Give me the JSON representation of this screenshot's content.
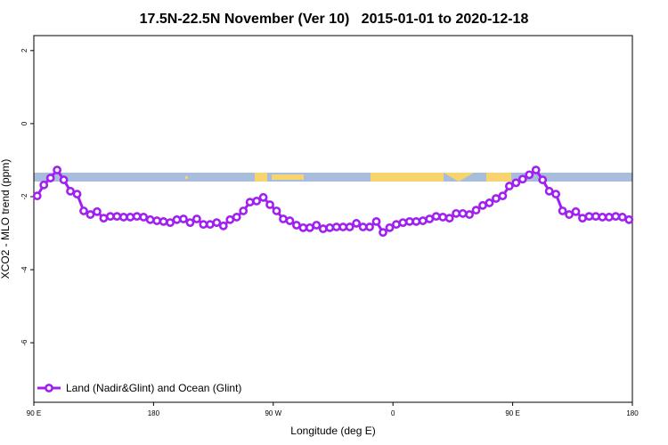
{
  "chart_data": {
    "type": "line",
    "title": "17.5N-22.5N November (Ver 10)   2015-01-01 to 2020-12-18",
    "x_label": "Longitude (deg E)",
    "y_label": "XCO2 - MLO trend (ppm)",
    "x": [
      92.5,
      97.5,
      102.5,
      107.5,
      112.5,
      117.5,
      122.5,
      127.5,
      132.5,
      137.5,
      142.5,
      147.5,
      152.5,
      157.5,
      162.5,
      167.5,
      172.5,
      177.5,
      182.5,
      187.5,
      192.5,
      197.5,
      202.5,
      207.5,
      212.5,
      217.5,
      222.5,
      227.5,
      232.5,
      237.5,
      242.5,
      247.5,
      252.5,
      257.5,
      262.5,
      267.5,
      272.5,
      277.5,
      282.5,
      287.5,
      292.5,
      297.5,
      302.5,
      307.5,
      312.5,
      317.5,
      322.5,
      327.5,
      332.5,
      337.5,
      342.5,
      347.5,
      352.5,
      357.5,
      362.5,
      367.5,
      372.5,
      377.5,
      382.5,
      387.5,
      392.5,
      397.5,
      402.5,
      407.5,
      412.5,
      417.5,
      422.5,
      427.5,
      432.5,
      437.5,
      442.5,
      447.5,
      452.5,
      457.5,
      462.5,
      467.5,
      472.5,
      477.5,
      482.5,
      487.5,
      492.5,
      497.5,
      502.5,
      507.5,
      512.5,
      517.5,
      522.5,
      527.5,
      532.5,
      537.5
    ],
    "series": [
      {
        "name": "Land (Nadir&Glint) and Ocean (Glint)",
        "color": "#a020f0",
        "values": [
          -1.98,
          -1.68,
          -1.49,
          -1.27,
          -1.54,
          -1.85,
          -1.93,
          -2.39,
          -2.49,
          -2.41,
          -2.59,
          -2.54,
          -2.54,
          -2.56,
          -2.56,
          -2.54,
          -2.56,
          -2.63,
          -2.66,
          -2.68,
          -2.71,
          -2.63,
          -2.61,
          -2.71,
          -2.61,
          -2.76,
          -2.76,
          -2.71,
          -2.8,
          -2.63,
          -2.56,
          -2.39,
          -2.15,
          -2.12,
          -2.02,
          -2.22,
          -2.39,
          -2.61,
          -2.66,
          -2.78,
          -2.85,
          -2.85,
          -2.78,
          -2.88,
          -2.85,
          -2.83,
          -2.83,
          -2.83,
          -2.73,
          -2.83,
          -2.83,
          -2.68,
          -2.98,
          -2.85,
          -2.76,
          -2.71,
          -2.68,
          -2.68,
          -2.66,
          -2.61,
          -2.54,
          -2.56,
          -2.59,
          -2.46,
          -2.46,
          -2.49,
          -2.37,
          -2.24,
          -2.17,
          -2.05,
          -1.98,
          -1.71,
          -1.62,
          -1.52,
          -1.4,
          -1.27,
          -1.54,
          -1.85,
          -1.93,
          -2.39,
          -2.49,
          -2.41,
          -2.59,
          -2.54,
          -2.54,
          -2.56,
          -2.56,
          -2.54,
          -2.56,
          -2.63
        ]
      }
    ],
    "xlim": [
      90,
      540
    ],
    "xticks": [
      {
        "value": 90,
        "label": "90 E"
      },
      180,
      {
        "value": 270,
        "label": "90 W"
      },
      {
        "value": 360,
        "label": "0"
      },
      {
        "value": 450,
        "label": "90 E"
      },
      {
        "value": 540,
        "label": "180"
      }
    ],
    "ylim": [
      -7.63,
      2.41
    ],
    "yticks": [
      2,
      0,
      -2,
      -4,
      -6
    ],
    "legend": "bottom-left",
    "grid": false
  }
}
